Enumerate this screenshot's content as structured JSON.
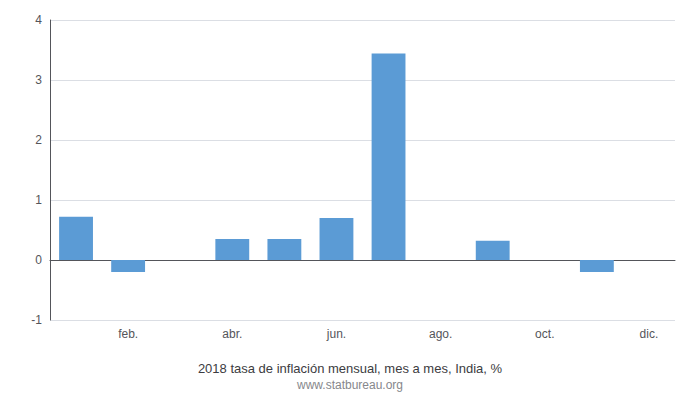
{
  "chart_data": {
    "type": "bar",
    "title": "2018 tasa de inflación mensual, mes a mes, India, %",
    "subtitle": "www.statbureau.org",
    "categories": [
      null,
      "feb.",
      null,
      "abr.",
      null,
      "jun.",
      null,
      "ago.",
      null,
      "oct.",
      null,
      "dic."
    ],
    "values": [
      0.72,
      -0.2,
      0.0,
      0.35,
      0.35,
      0.7,
      3.44,
      0.0,
      0.32,
      0.0,
      -0.2,
      0.0
    ],
    "color": "#5b9bd5",
    "ylim": [
      -1,
      4
    ],
    "yticks": [
      -1,
      0,
      1,
      2,
      3,
      4
    ],
    "grid": true
  }
}
